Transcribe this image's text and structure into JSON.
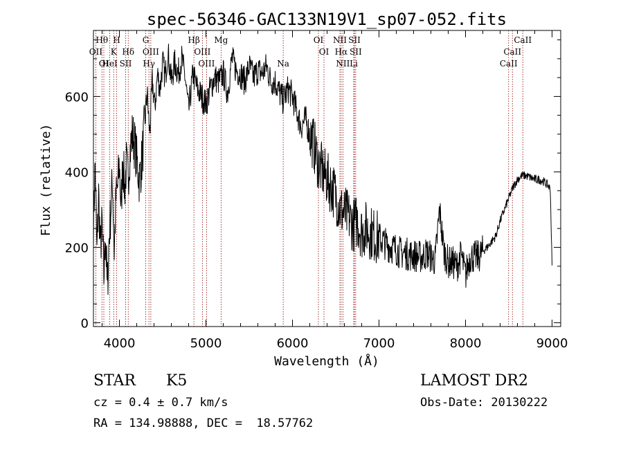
{
  "chart_data": {
    "type": "line",
    "title": "spec-56346-GAC133N19V1_sp07-052.fits",
    "xlabel": "Wavelength (Å)",
    "ylabel": "Flux (relative)",
    "xlim": [
      3700,
      9100
    ],
    "ylim": [
      -10,
      775
    ],
    "x_ticks": [
      4000,
      5000,
      6000,
      7000,
      8000,
      9000
    ],
    "x_tick_labels": [
      "4000",
      "5000",
      "6000",
      "7000",
      "8000",
      "9000"
    ],
    "y_ticks": [
      0,
      200,
      400,
      600
    ],
    "y_tick_labels": [
      "0",
      "200",
      "400",
      "600"
    ],
    "series": [
      {
        "x": [
          3700,
          3720,
          3740,
          3760,
          3780,
          3800,
          3820,
          3840,
          3860,
          3880,
          3900,
          3920,
          3940,
          3960,
          3980,
          4000,
          4020,
          4040,
          4060,
          4080,
          4100,
          4120,
          4150,
          4180,
          4200,
          4230,
          4260,
          4290,
          4320,
          4350,
          4380,
          4410,
          4440,
          4470,
          4500,
          4530,
          4560,
          4600,
          4640,
          4680,
          4720,
          4760,
          4800,
          4850,
          4900,
          4950,
          5000,
          5050,
          5100,
          5150,
          5200,
          5250,
          5300,
          5350,
          5400,
          5450,
          5500,
          5550,
          5600,
          5650,
          5700,
          5750,
          5800,
          5850,
          5890,
          5950,
          6000,
          6050,
          6100,
          6150,
          6200,
          6250,
          6300,
          6350,
          6400,
          6450,
          6500,
          6550,
          6600,
          6650,
          6700,
          6750,
          6800,
          6850,
          6900,
          6950,
          7000,
          7050,
          7100,
          7150,
          7200,
          7250,
          7300,
          7350,
          7400,
          7450,
          7500,
          7550,
          7600,
          7650,
          7700,
          7750,
          7800,
          7850,
          7900,
          7950,
          8000,
          8050,
          8100,
          8150,
          8200,
          8250,
          8300,
          8350,
          8400,
          8450,
          8500,
          8550,
          8600,
          8650,
          8700,
          8750,
          8800,
          8850,
          8900,
          8950,
          8980,
          9000
        ],
        "y": [
          260,
          420,
          180,
          340,
          200,
          260,
          120,
          240,
          80,
          220,
          300,
          380,
          190,
          330,
          360,
          420,
          300,
          440,
          350,
          420,
          380,
          450,
          500,
          470,
          430,
          380,
          430,
          520,
          610,
          500,
          640,
          570,
          660,
          620,
          690,
          650,
          720,
          640,
          690,
          660,
          700,
          650,
          560,
          660,
          620,
          600,
          580,
          620,
          650,
          640,
          660,
          610,
          700,
          670,
          660,
          640,
          680,
          650,
          670,
          660,
          680,
          640,
          640,
          610,
          590,
          620,
          600,
          560,
          520,
          540,
          500,
          470,
          420,
          400,
          380,
          360,
          340,
          300,
          290,
          280,
          260,
          270,
          240,
          250,
          240,
          230,
          225,
          215,
          205,
          200,
          195,
          185,
          185,
          180,
          180,
          175,
          175,
          185,
          175,
          165,
          300,
          190,
          160,
          160,
          150,
          180,
          125,
          175,
          175,
          175,
          190,
          200,
          215,
          230,
          270,
          300,
          330,
          360,
          380,
          390,
          390,
          385,
          380,
          380,
          375,
          365,
          355,
          150
        ]
      }
    ],
    "lines": [
      {
        "wavelength": 3727,
        "name": "OII"
      },
      {
        "wavelength": 3798,
        "name": "Hθ"
      },
      {
        "wavelength": 3820,
        "name": "OI"
      },
      {
        "wavelength": 3889,
        "name": "HeI"
      },
      {
        "wavelength": 3934,
        "name": "K"
      },
      {
        "wavelength": 3969,
        "name": "H"
      },
      {
        "wavelength": 4072,
        "name": "SII"
      },
      {
        "wavelength": 4102,
        "name": "Hδ"
      },
      {
        "wavelength": 4304,
        "name": "G"
      },
      {
        "wavelength": 4341,
        "name": "Hγ"
      },
      {
        "wavelength": 4363,
        "name": "OIII"
      },
      {
        "wavelength": 4861,
        "name": "Hβ"
      },
      {
        "wavelength": 4959,
        "name": "OIII"
      },
      {
        "wavelength": 5007,
        "name": "OIII"
      },
      {
        "wavelength": 5175,
        "name": "Mg"
      },
      {
        "wavelength": 5893,
        "name": "Na"
      },
      {
        "wavelength": 6300,
        "name": "OI"
      },
      {
        "wavelength": 6364,
        "name": "OI"
      },
      {
        "wavelength": 6548,
        "name": "NII"
      },
      {
        "wavelength": 6563,
        "name": "Hα"
      },
      {
        "wavelength": 6583,
        "name": "NII"
      },
      {
        "wavelength": 6708,
        "name": "Li"
      },
      {
        "wavelength": 6716,
        "name": "SII"
      },
      {
        "wavelength": 6731,
        "name": "SII"
      },
      {
        "wavelength": 8498,
        "name": "CaII"
      },
      {
        "wavelength": 8542,
        "name": "CaII"
      },
      {
        "wavelength": 8662,
        "name": "CaII"
      }
    ],
    "line_labels": [
      {
        "text": "Hθ",
        "row": 0,
        "wavelength": 3798
      },
      {
        "text": "H",
        "row": 0,
        "wavelength": 3969
      },
      {
        "text": "G",
        "row": 0,
        "wavelength": 4304
      },
      {
        "text": "Hβ",
        "row": 0,
        "wavelength": 4861
      },
      {
        "text": "Mg",
        "row": 0,
        "wavelength": 5175
      },
      {
        "text": "OI",
        "row": 0,
        "wavelength": 6300
      },
      {
        "text": "NII",
        "row": 0,
        "wavelength": 6548
      },
      {
        "text": "SII",
        "row": 0,
        "wavelength": 6716
      },
      {
        "text": "CaII",
        "row": 0,
        "wavelength": 8662
      },
      {
        "text": "OII",
        "row": 1,
        "wavelength": 3727
      },
      {
        "text": "K",
        "row": 1,
        "wavelength": 3934
      },
      {
        "text": "Hδ",
        "row": 1,
        "wavelength": 4102
      },
      {
        "text": "OIII",
        "row": 1,
        "wavelength": 4363
      },
      {
        "text": "OIII",
        "row": 1,
        "wavelength": 4959
      },
      {
        "text": "OI",
        "row": 1,
        "wavelength": 6364
      },
      {
        "text": "Hα",
        "row": 1,
        "wavelength": 6563
      },
      {
        "text": "SII",
        "row": 1,
        "wavelength": 6731
      },
      {
        "text": "CaII",
        "row": 1,
        "wavelength": 8542
      },
      {
        "text": "OI",
        "row": 2,
        "wavelength": 3820
      },
      {
        "text": "HeI",
        "row": 2,
        "wavelength": 3889
      },
      {
        "text": "SII",
        "row": 2,
        "wavelength": 4072
      },
      {
        "text": "Hγ",
        "row": 2,
        "wavelength": 4341
      },
      {
        "text": "OIII",
        "row": 2,
        "wavelength": 5007
      },
      {
        "text": "Na",
        "row": 2,
        "wavelength": 5893
      },
      {
        "text": "NII",
        "row": 2,
        "wavelength": 6583
      },
      {
        "text": "Li",
        "row": 2,
        "wavelength": 6708
      },
      {
        "text": "CaII",
        "row": 2,
        "wavelength": 8498
      }
    ],
    "line_color": "#8b0000",
    "spectrum_color": "#000000",
    "grid": false
  },
  "info": {
    "object_class": "STAR",
    "subclass": "K5",
    "redshift": "cz = 0.4 ± 0.7 km/s",
    "coords": "RA = 134.98888, DEC =  18.57762",
    "survey": "LAMOST DR2",
    "obs_date": "Obs-Date: 20130222"
  }
}
